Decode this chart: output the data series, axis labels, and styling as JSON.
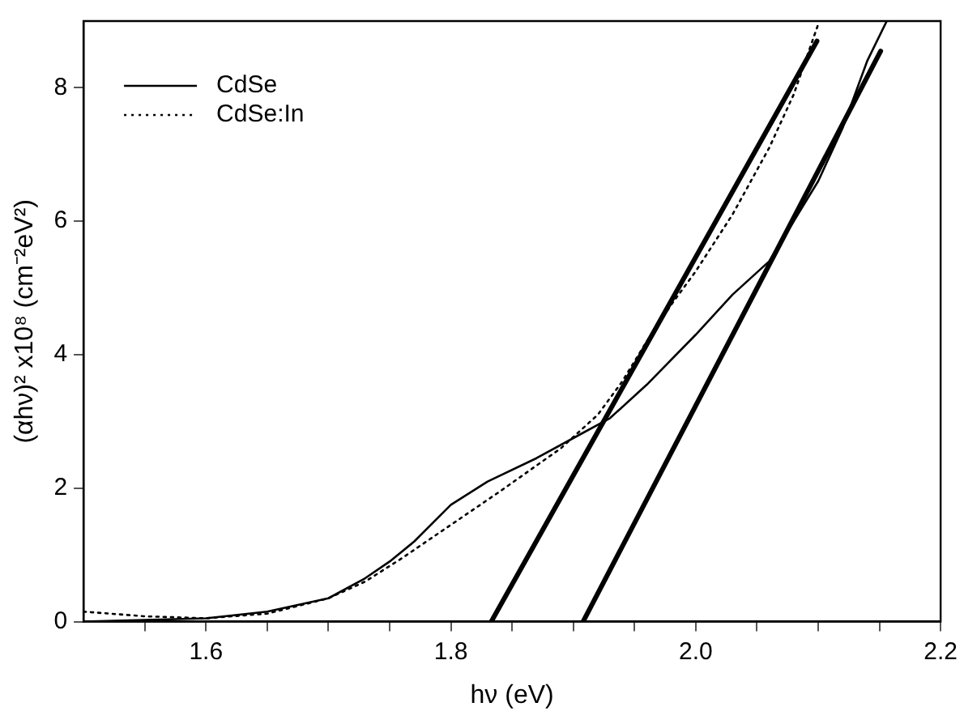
{
  "chart_data": {
    "type": "line",
    "xlabel": "hν (eV)",
    "ylabel": "(αhν)² x10⁸ (cm⁻²eV²)",
    "xlim": [
      1.5,
      2.2
    ],
    "ylim": [
      0,
      9
    ],
    "xticks": [
      {
        "value": 1.55,
        "label": null
      },
      {
        "value": 1.6,
        "label": "1.6"
      },
      {
        "value": 1.65,
        "label": null
      },
      {
        "value": 1.7,
        "label": null
      },
      {
        "value": 1.75,
        "label": null
      },
      {
        "value": 1.8,
        "label": "1.8"
      },
      {
        "value": 1.85,
        "label": null
      },
      {
        "value": 1.9,
        "label": null
      },
      {
        "value": 1.95,
        "label": null
      },
      {
        "value": 2.0,
        "label": "2.0"
      },
      {
        "value": 2.05,
        "label": null
      },
      {
        "value": 2.1,
        "label": null
      },
      {
        "value": 2.15,
        "label": null
      },
      {
        "value": 2.2,
        "label": "2.2"
      }
    ],
    "yticks": [
      0,
      2,
      4,
      6,
      8
    ],
    "grid": false,
    "legend": "top left",
    "marker": "none",
    "series": [
      {
        "name": "CdSe",
        "color": "#000000",
        "line_style": "solid",
        "x": [
          1.5,
          1.6,
          1.65,
          1.7,
          1.73,
          1.75,
          1.77,
          1.8,
          1.83,
          1.87,
          1.9,
          1.93,
          1.96,
          2.0,
          2.03,
          2.06,
          2.08,
          2.1,
          2.12,
          2.14,
          2.156
        ],
        "values": [
          0,
          0.05,
          0.15,
          0.35,
          0.65,
          0.9,
          1.2,
          1.75,
          2.1,
          2.45,
          2.75,
          3.05,
          3.55,
          4.3,
          4.9,
          5.4,
          6.0,
          6.6,
          7.4,
          8.4,
          9.0
        ]
      },
      {
        "name": "CdSe:In",
        "color": "#000000",
        "line_style": "dotted",
        "x": [
          1.5,
          1.55,
          1.6,
          1.65,
          1.7,
          1.73,
          1.76,
          1.8,
          1.84,
          1.89,
          1.92,
          1.94,
          1.96,
          1.98,
          2.0,
          2.03,
          2.06,
          2.08,
          2.1
        ],
        "values": [
          0.15,
          0.08,
          0.05,
          0.12,
          0.35,
          0.6,
          0.95,
          1.45,
          1.95,
          2.6,
          3.1,
          3.6,
          4.2,
          4.75,
          5.25,
          6.1,
          7.1,
          7.9,
          8.95
        ]
      },
      {
        "type": "line",
        "color": "#000000",
        "line_style": "solid",
        "x": [
          1.833,
          2.099
        ],
        "values": [
          0,
          8.7
        ]
      },
      {
        "type": "line",
        "color": "#000000",
        "line_style": "solid",
        "x": [
          1.908,
          2.151
        ],
        "values": [
          0,
          8.55
        ]
      }
    ]
  }
}
